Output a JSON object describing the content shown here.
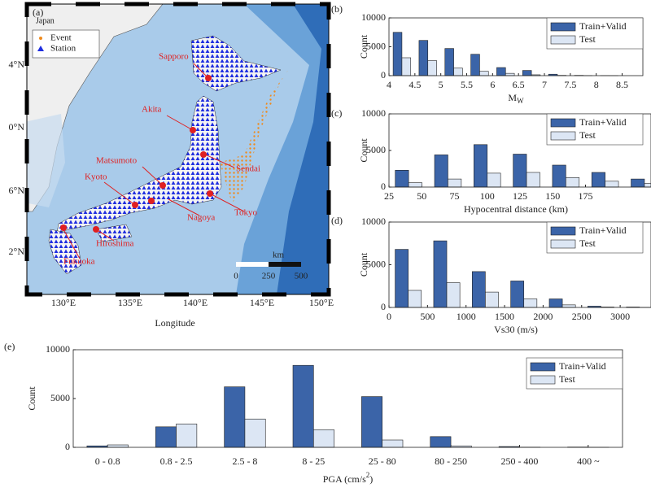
{
  "map": {
    "panel": "(a)",
    "region": "Japan",
    "legend": [
      "Event",
      "Station"
    ],
    "lat_ticks": [
      "4°N",
      "0°N",
      "6°N",
      "2°N"
    ],
    "lon_ticks": [
      "130°E",
      "135°E",
      "140°E",
      "145°E",
      "150°E"
    ],
    "xlabel": "Longitude",
    "cities": [
      "Sapporo",
      "Akita",
      "Matsumoto",
      "Kyoto",
      "Sendai",
      "Tokyo",
      "Nagoya",
      "Hiroshima",
      "Fukuoka"
    ],
    "scale": {
      "unit": "km",
      "labels": [
        "0",
        "250",
        "500"
      ]
    }
  },
  "chart_data": [
    {
      "type": "bar",
      "panel": "(b)",
      "xlabel": "M",
      "xlabel_sub": "W",
      "ylabel": "Count",
      "x": [
        4.25,
        4.75,
        5.25,
        5.75,
        6.25,
        6.75,
        7.25,
        7.75,
        8.25
      ],
      "series": [
        {
          "name": "Train+Valid",
          "color": "#3b64a8",
          "values": [
            7500,
            6100,
            4700,
            3700,
            1400,
            900,
            250,
            50,
            10
          ]
        },
        {
          "name": "Test",
          "color": "#dce6f4",
          "values": [
            3100,
            2600,
            1300,
            750,
            400,
            150,
            50,
            10,
            5
          ]
        }
      ],
      "xlim": [
        4,
        8.9
      ],
      "xticks": [
        4,
        4.5,
        5,
        5.5,
        6,
        6.5,
        7,
        7.5,
        8,
        8.5
      ],
      "ylim": [
        0,
        10000
      ],
      "yticks": [
        0,
        5000,
        10000
      ],
      "legend": "upper right"
    },
    {
      "type": "bar",
      "panel": "(c)",
      "xlabel": "Hypocentral distance (km)",
      "ylabel": "Count",
      "x": [
        40,
        70,
        100,
        130,
        160,
        190,
        220
      ],
      "series": [
        {
          "name": "Train+Valid",
          "color": "#3b64a8",
          "values": [
            2300,
            4400,
            5800,
            4500,
            3000,
            2000,
            1100
          ]
        },
        {
          "name": "Test",
          "color": "#dce6f4",
          "values": [
            600,
            1100,
            1900,
            2000,
            1300,
            800,
            500
          ]
        }
      ],
      "xlim": [
        25,
        225
      ],
      "xticks": [
        25,
        50,
        75,
        100,
        125,
        150,
        175
      ],
      "ylim": [
        0,
        10000
      ],
      "yticks": [
        0,
        5000,
        10000
      ],
      "legend": "upper right"
    },
    {
      "type": "bar",
      "panel": "(d)",
      "xlabel": "Vs30 (m/s)",
      "ylabel": "Count",
      "x": [
        250,
        750,
        1250,
        1750,
        2250,
        2750,
        3250
      ],
      "series": [
        {
          "name": "Train+Valid",
          "color": "#3b64a8",
          "values": [
            6800,
            7800,
            4200,
            3100,
            1000,
            150,
            50
          ]
        },
        {
          "name": "Test",
          "color": "#dce6f4",
          "values": [
            2000,
            2900,
            1800,
            1000,
            300,
            50,
            10
          ]
        }
      ],
      "xlim": [
        0,
        3400
      ],
      "xticks": [
        0,
        500,
        1000,
        1500,
        2000,
        2500,
        3000
      ],
      "ylim": [
        0,
        10000
      ],
      "yticks": [
        0,
        5000,
        10000
      ],
      "legend": "upper right"
    },
    {
      "type": "bar",
      "panel": "(e)",
      "xlabel": "PGA (cm/s",
      "xlabel_sup": "2",
      "xlabel_end": ")",
      "ylabel": "Count",
      "categories": [
        "0 - 0.8",
        "0.8 - 2.5",
        "2.5 - 8",
        "8 - 25",
        "25 - 80",
        "80 - 250",
        "250 - 400",
        "400 ~"
      ],
      "series": [
        {
          "name": "Train+Valid",
          "color": "#3b64a8",
          "values": [
            150,
            2100,
            6200,
            8400,
            5200,
            1100,
            80,
            30
          ]
        },
        {
          "name": "Test",
          "color": "#dce6f4",
          "values": [
            250,
            2400,
            2900,
            1800,
            750,
            150,
            20,
            10
          ]
        }
      ],
      "ylim": [
        0,
        10000
      ],
      "yticks": [
        0,
        5000,
        10000
      ],
      "legend": "upper right"
    }
  ]
}
